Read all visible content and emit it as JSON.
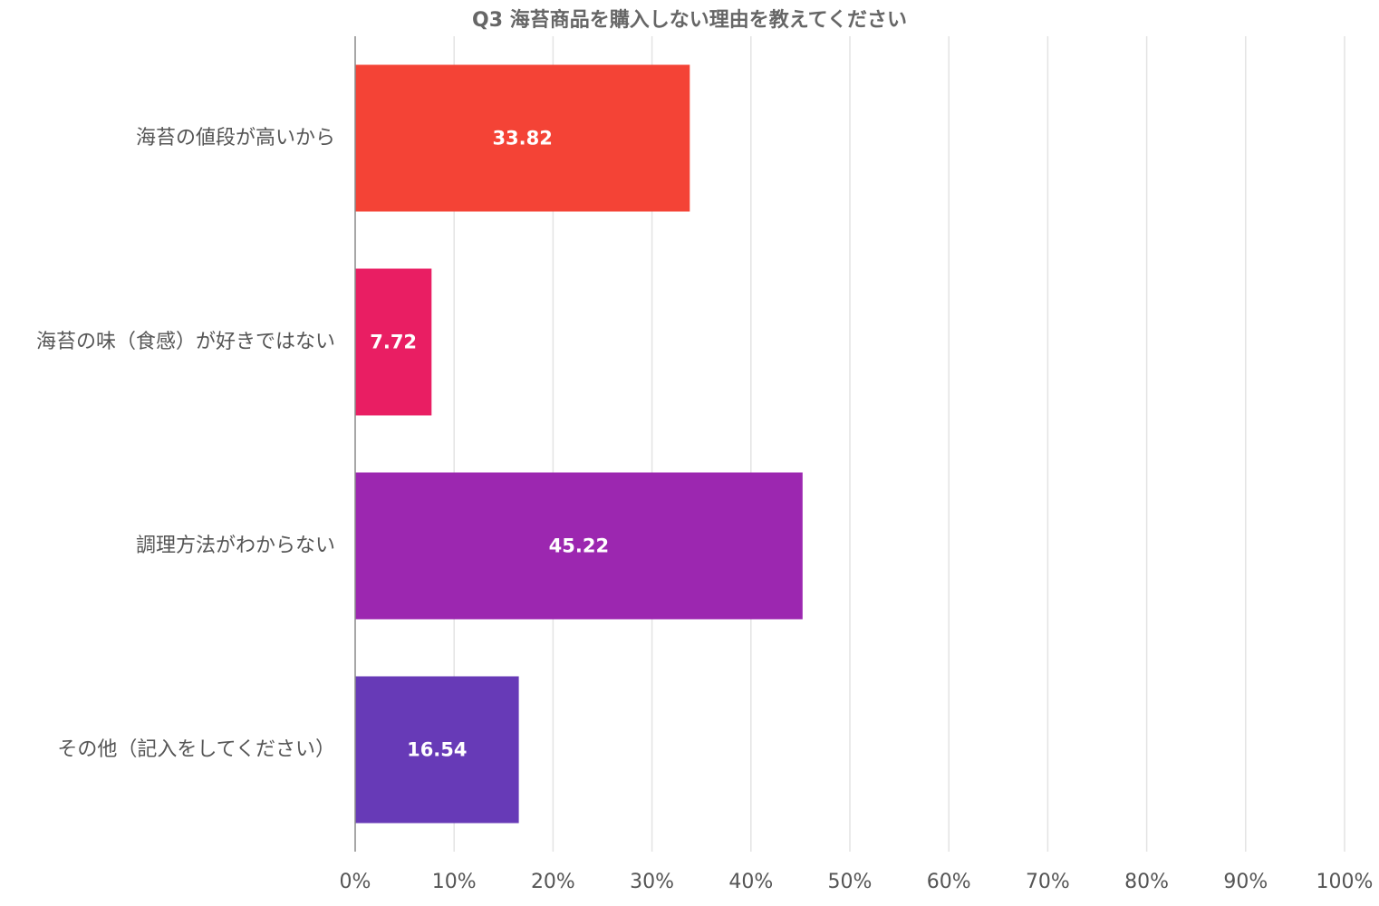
{
  "chart_data": {
    "type": "bar",
    "orientation": "horizontal",
    "title": "Q3 海苔商品を購入しない理由を教えてください",
    "categories": [
      "海苔の値段が高いから",
      "海苔の味（食感）が好きではない",
      "調理方法がわからない",
      "その他（記入をしてください）"
    ],
    "values": [
      33.82,
      7.72,
      45.22,
      16.54
    ],
    "data_labels": [
      "33.82",
      "7.72",
      "45.22",
      "16.54"
    ],
    "colors": [
      "#f44336",
      "#e91e63",
      "#9c27b0",
      "#673ab7"
    ],
    "xlim": [
      0,
      100
    ],
    "xticks": [
      "0%",
      "10%",
      "20%",
      "30%",
      "40%",
      "50%",
      "60%",
      "70%",
      "80%",
      "90%",
      "100%"
    ],
    "xlabel": "",
    "ylabel": "",
    "grid": true,
    "legend": "none"
  }
}
